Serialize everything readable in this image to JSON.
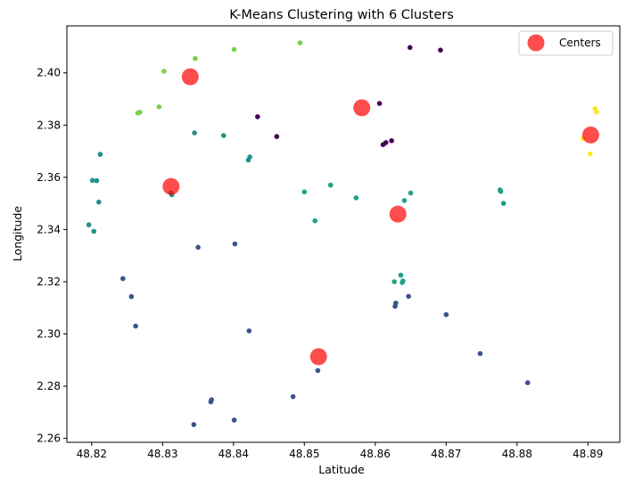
{
  "chart_data": {
    "type": "scatter",
    "title": "K-Means Clustering with 6 Clusters",
    "xlabel": "Latitude",
    "ylabel": "Longitude",
    "xlim": [
      48.8165,
      48.8945
    ],
    "ylim": [
      2.2585,
      2.418
    ],
    "xticks": [
      48.82,
      48.83,
      48.84,
      48.85,
      48.86,
      48.87,
      48.88,
      48.89
    ],
    "xtick_labels": [
      "48.82",
      "48.83",
      "48.84",
      "48.85",
      "48.86",
      "48.87",
      "48.88",
      "48.89"
    ],
    "yticks": [
      2.26,
      2.28,
      2.3,
      2.32,
      2.34,
      2.36,
      2.38,
      2.4
    ],
    "ytick_labels": [
      "2.26",
      "2.28",
      "2.30",
      "2.32",
      "2.34",
      "2.36",
      "2.38",
      "2.40"
    ],
    "grid": false,
    "legend": {
      "position": "top-right",
      "entries": [
        "Centers"
      ]
    },
    "clusters": [
      {
        "color": "#440154",
        "points": [
          [
            48.8649,
            2.4097
          ],
          [
            48.8692,
            2.4087
          ],
          [
            48.8434,
            2.3832
          ],
          [
            48.8461,
            2.3756
          ],
          [
            48.8606,
            2.3883
          ],
          [
            48.8615,
            2.3733
          ],
          [
            48.8623,
            2.374
          ],
          [
            48.8611,
            2.3725
          ]
        ]
      },
      {
        "color": "#3b528b",
        "points": [
          [
            48.835,
            2.3332
          ],
          [
            48.8402,
            2.3345
          ],
          [
            48.8244,
            2.3212
          ],
          [
            48.8256,
            2.3143
          ],
          [
            48.8262,
            2.303
          ],
          [
            48.8422,
            2.3012
          ],
          [
            48.8369,
            2.2748
          ],
          [
            48.8368,
            2.274
          ],
          [
            48.8344,
            2.2653
          ],
          [
            48.8401,
            2.267
          ],
          [
            48.8484,
            2.276
          ],
          [
            48.8519,
            2.286
          ],
          [
            48.8647,
            2.3144
          ],
          [
            48.8628,
            2.3106
          ],
          [
            48.8629,
            2.3118
          ],
          [
            48.87,
            2.3074
          ],
          [
            48.8748,
            2.2925
          ],
          [
            48.8815,
            2.2813
          ]
        ]
      },
      {
        "color": "#21918c",
        "points": [
          [
            48.8212,
            2.3688
          ],
          [
            48.8201,
            2.3588
          ],
          [
            48.8207,
            2.3587
          ],
          [
            48.821,
            2.3505
          ],
          [
            48.8196,
            2.3418
          ],
          [
            48.8203,
            2.3393
          ],
          [
            48.8312,
            2.354
          ],
          [
            48.8313,
            2.3533
          ],
          [
            48.8345,
            2.377
          ],
          [
            48.8386,
            2.376
          ],
          [
            48.8421,
            2.3666
          ],
          [
            48.8423,
            2.3678
          ]
        ]
      },
      {
        "color": "#1fa187",
        "points": [
          [
            48.85,
            2.3544
          ],
          [
            48.8537,
            2.357
          ],
          [
            48.8515,
            2.3433
          ],
          [
            48.8573,
            2.3521
          ],
          [
            48.865,
            2.354
          ],
          [
            48.8641,
            2.3511
          ],
          [
            48.8636,
            2.3225
          ],
          [
            48.8638,
            2.3197
          ],
          [
            48.8639,
            2.3203
          ],
          [
            48.8627,
            2.32
          ],
          [
            48.8776,
            2.3552
          ],
          [
            48.8777,
            2.3546
          ],
          [
            48.8781,
            2.35
          ]
        ]
      },
      {
        "color": "#7ad151",
        "points": [
          [
            48.8302,
            2.4006
          ],
          [
            48.8346,
            2.4055
          ],
          [
            48.8401,
            2.409
          ],
          [
            48.8494,
            2.4115
          ],
          [
            48.8295,
            2.387
          ],
          [
            48.8265,
            2.3846
          ],
          [
            48.8268,
            2.3849
          ]
        ]
      },
      {
        "color": "#fde725",
        "points": [
          [
            48.891,
            2.3863
          ],
          [
            48.8912,
            2.385
          ],
          [
            48.8893,
            2.3749
          ],
          [
            48.8903,
            2.369
          ]
        ]
      }
    ],
    "centers": {
      "name": "Centers",
      "color": "#ff0000",
      "points": [
        [
          48.8339,
          2.3985
        ],
        [
          48.8581,
          2.3866
        ],
        [
          48.8904,
          2.3762
        ],
        [
          48.8312,
          2.3565
        ],
        [
          48.8632,
          2.3459
        ],
        [
          48.852,
          2.2913
        ]
      ]
    }
  }
}
